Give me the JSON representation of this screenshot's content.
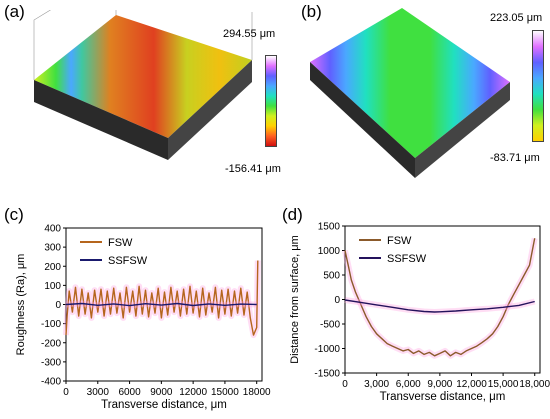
{
  "panels": {
    "a": {
      "label": "(a)",
      "colorbar": {
        "max_label": "294.55 μm",
        "min_label": "-156.41 μm"
      },
      "colors": [
        "#ffffff",
        "#e070ff",
        "#6060ff",
        "#4aa8ff",
        "#20e0c0",
        "#40e040",
        "#d0f020",
        "#ffd000",
        "#ff6020",
        "#d01010"
      ]
    },
    "b": {
      "label": "(b)",
      "colorbar": {
        "max_label": "223.05 μm",
        "min_label": "-83.71 μm"
      },
      "colors": [
        "#ffffff",
        "#e070ff",
        "#6060ff",
        "#4aa8ff",
        "#20e0c0",
        "#40e040",
        "#d0f020",
        "#ffd000",
        "#ff6020",
        "#d01010"
      ]
    },
    "c": {
      "label": "(c)"
    },
    "d": {
      "label": "(d)"
    }
  },
  "chart_data": [
    {
      "type": "line",
      "panel": "c",
      "xlabel": "Transverse distance, μm",
      "ylabel": "Roughness (Ra), μm",
      "xlim": [
        0,
        18500
      ],
      "ylim": [
        -400,
        400
      ],
      "xticks": [
        0,
        3000,
        6000,
        9000,
        12000,
        15000,
        18000
      ],
      "xtick_labels": [
        "0",
        "3000",
        "6000",
        "9000",
        "12000",
        "15000",
        "18000"
      ],
      "yticks": [
        -400,
        -300,
        -200,
        -100,
        0,
        100,
        200,
        300,
        400
      ],
      "ytick_labels": [
        "-400",
        "-300",
        "-200",
        "-100",
        "0",
        "100",
        "200",
        "300",
        "400"
      ],
      "legend_position": "top-left",
      "series": [
        {
          "name": "FSW",
          "color": "#b5651d",
          "x": [
            0,
            100,
            300,
            600,
            900,
            1200,
            1500,
            1800,
            2100,
            2400,
            2700,
            3000,
            3300,
            3600,
            3900,
            4200,
            4500,
            4800,
            5100,
            5400,
            5700,
            6000,
            6300,
            6600,
            6900,
            7200,
            7500,
            7800,
            8100,
            8400,
            8700,
            9000,
            9300,
            9600,
            9900,
            10200,
            10500,
            10800,
            11100,
            11400,
            11700,
            12000,
            12300,
            12600,
            12900,
            13200,
            13500,
            13800,
            14100,
            14400,
            14700,
            15000,
            15300,
            15600,
            15900,
            16200,
            16500,
            16800,
            17100,
            17400,
            17700,
            18000,
            18100
          ],
          "y": [
            -160,
            -60,
            70,
            -40,
            90,
            -60,
            80,
            -50,
            60,
            -70,
            75,
            -40,
            80,
            -60,
            70,
            -50,
            85,
            -45,
            60,
            -70,
            90,
            -40,
            70,
            -60,
            95,
            -50,
            75,
            -65,
            60,
            -45,
            85,
            -70,
            65,
            -55,
            90,
            -40,
            70,
            -60,
            80,
            -50,
            95,
            -45,
            70,
            -65,
            85,
            -55,
            60,
            -40,
            90,
            -70,
            75,
            -50,
            80,
            -60,
            70,
            -45,
            85,
            -55,
            65,
            -70,
            -160,
            -120,
            230
          ]
        },
        {
          "name": "SSFSW",
          "color": "#1a1a6e",
          "x": [
            0,
            1500,
            3000,
            4500,
            6000,
            7500,
            9000,
            10500,
            12000,
            13500,
            15000,
            16500,
            18000
          ],
          "y": [
            0,
            5,
            -4,
            3,
            -6,
            4,
            -3,
            5,
            -5,
            3,
            -4,
            2,
            0
          ]
        }
      ]
    },
    {
      "type": "line",
      "panel": "d",
      "xlabel": "Transverse distance, μm",
      "ylabel": "Distance from surface, μm",
      "xlim": [
        0,
        18500
      ],
      "ylim": [
        -1500,
        1500
      ],
      "xticks": [
        0,
        3000,
        6000,
        9000,
        12000,
        15000,
        18000
      ],
      "xtick_labels": [
        "0",
        "3,000",
        "6,000",
        "9,000",
        "12,000",
        "15,000",
        "18,000"
      ],
      "yticks": [
        -1500,
        -1000,
        -500,
        0,
        500,
        1000,
        1500
      ],
      "ytick_labels": [
        "-1500",
        "-1000",
        "-500",
        "0",
        "500",
        "1000",
        "1500"
      ],
      "legend_position": "top-left",
      "series": [
        {
          "name": "FSW",
          "color": "#8b5a2b",
          "x": [
            0,
            300,
            600,
            1000,
            1500,
            2000,
            2500,
            3000,
            3500,
            4000,
            4500,
            5000,
            5500,
            6000,
            6500,
            7000,
            7500,
            8000,
            8500,
            9000,
            9500,
            10000,
            10500,
            11000,
            11500,
            12000,
            12500,
            13000,
            13500,
            14000,
            14500,
            15000,
            15500,
            16000,
            16500,
            17000,
            17500,
            18000
          ],
          "y": [
            1000,
            700,
            400,
            150,
            -100,
            -350,
            -550,
            -700,
            -800,
            -900,
            -950,
            -1000,
            -1050,
            -1020,
            -1100,
            -1050,
            -1120,
            -1080,
            -1150,
            -1100,
            -1050,
            -1150,
            -1080,
            -1120,
            -1050,
            -1000,
            -950,
            -880,
            -800,
            -700,
            -550,
            -350,
            -100,
            100,
            300,
            500,
            700,
            1250
          ]
        },
        {
          "name": "SSFSW",
          "color": "#24125c",
          "x": [
            0,
            1500,
            3000,
            4500,
            6000,
            7500,
            8500,
            9000,
            10500,
            12000,
            13500,
            15000,
            16500,
            18000
          ],
          "y": [
            -10,
            -60,
            -110,
            -160,
            -210,
            -245,
            -255,
            -250,
            -235,
            -210,
            -190,
            -160,
            -120,
            -40
          ]
        }
      ]
    }
  ]
}
